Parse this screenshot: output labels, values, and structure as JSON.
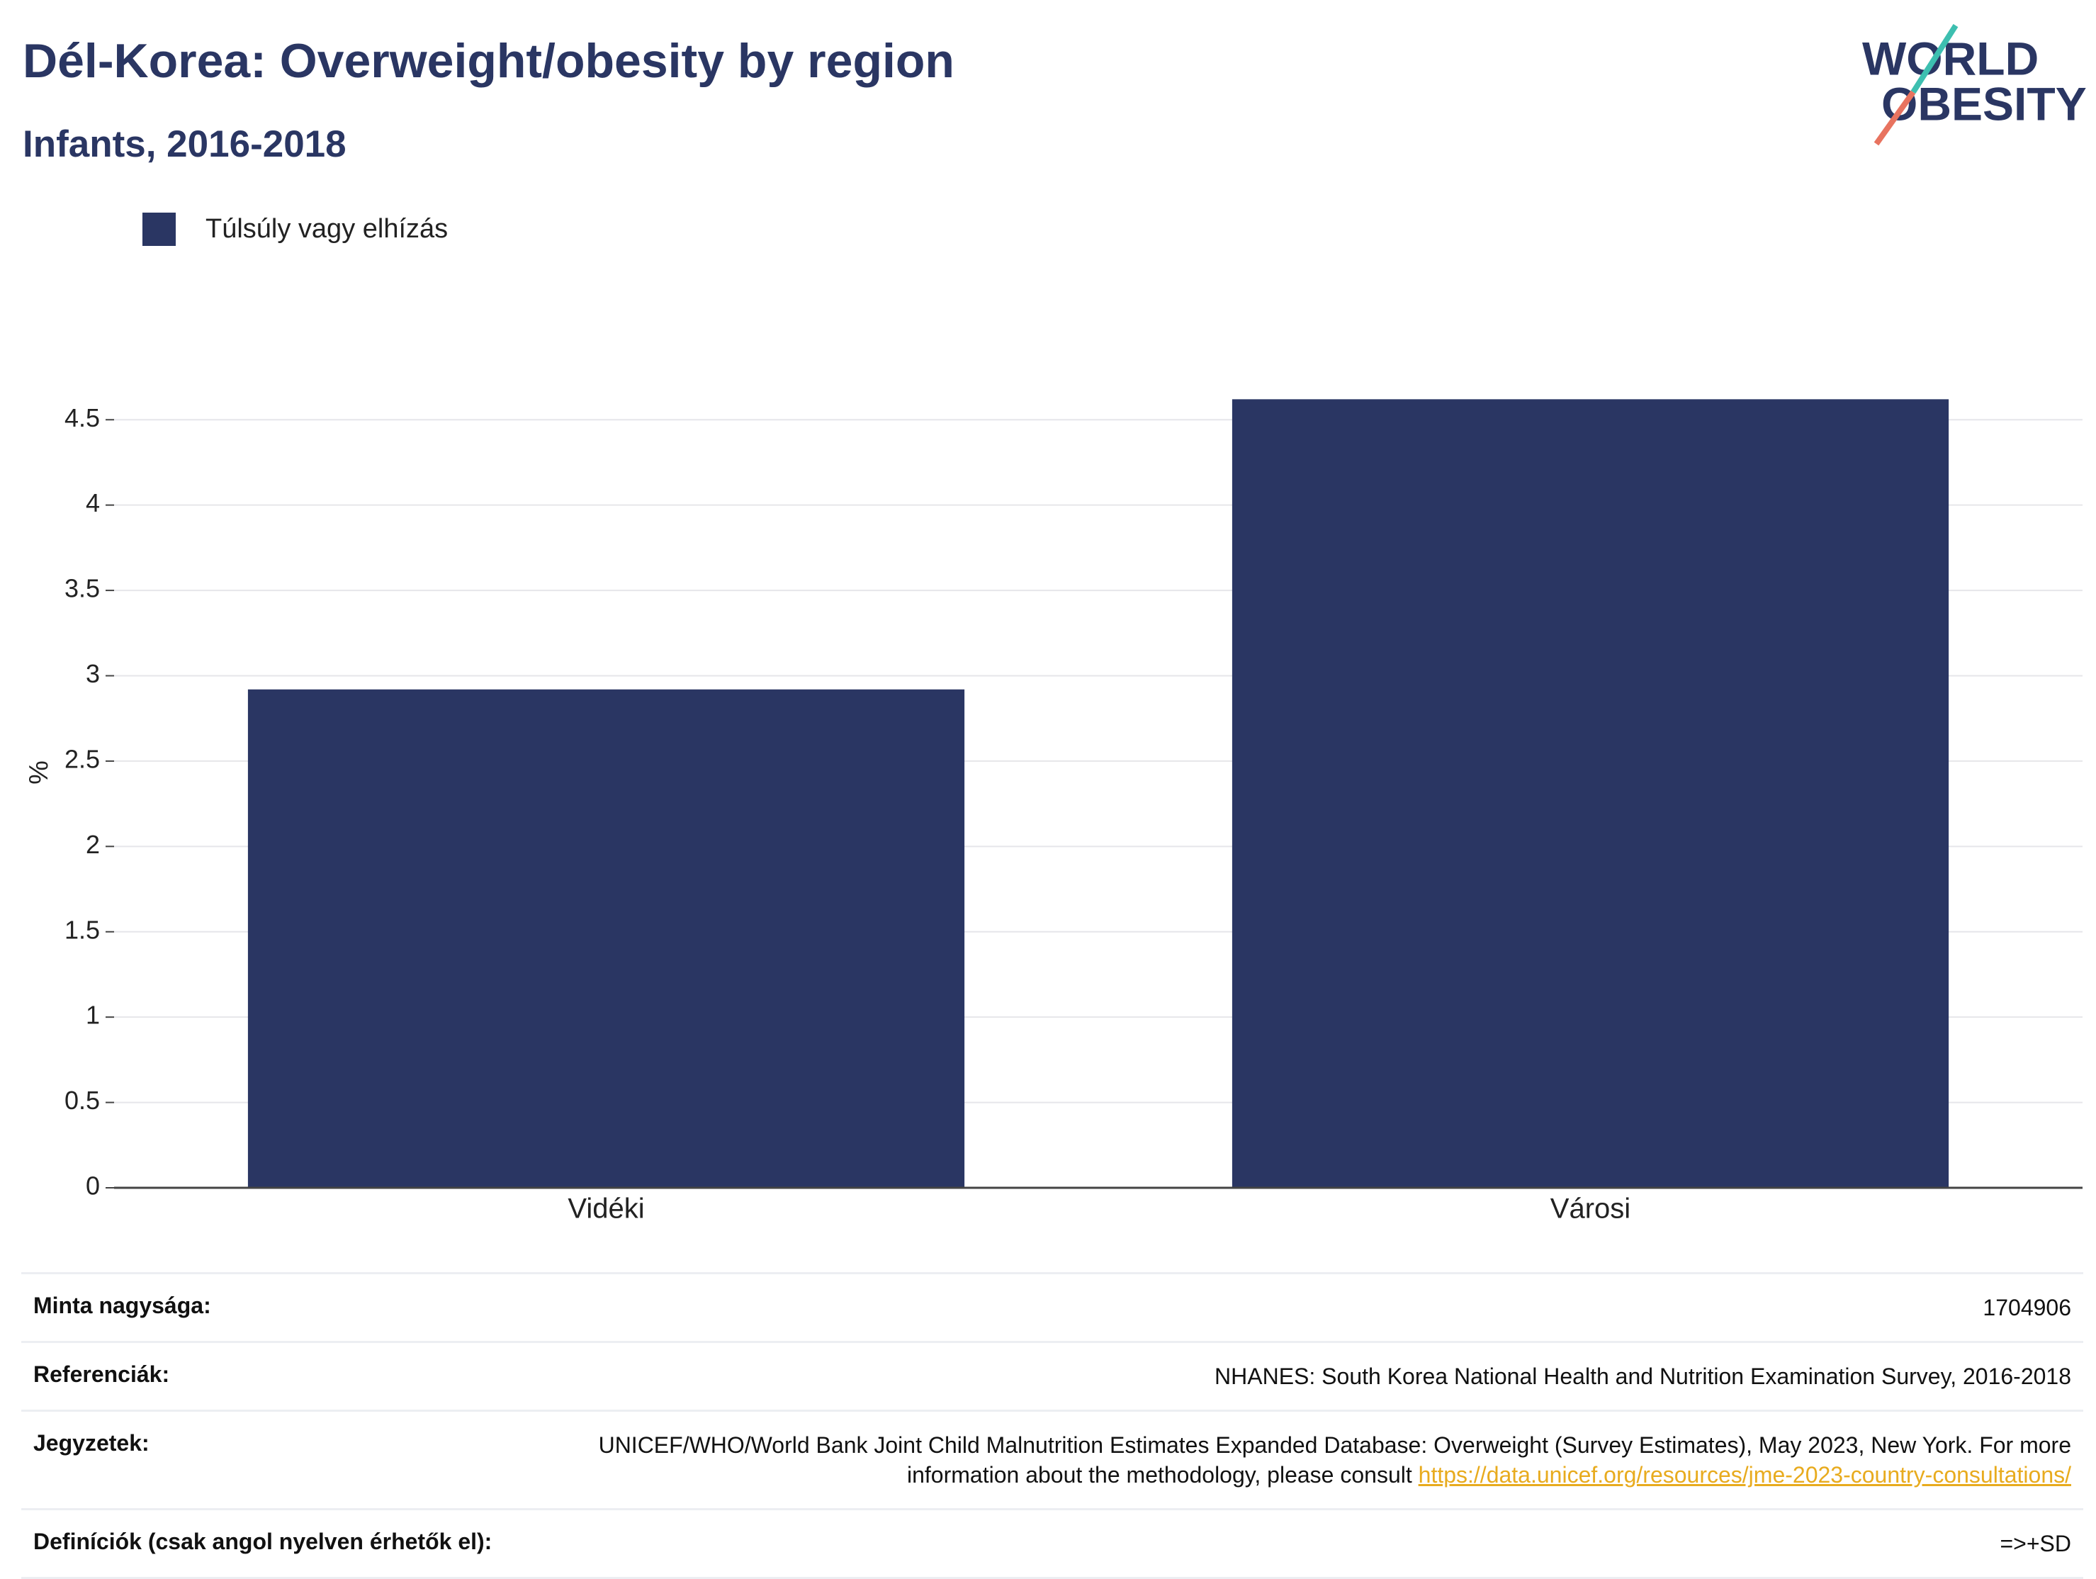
{
  "chart_data": {
    "type": "bar",
    "title": "Dél-Korea: Overweight/obesity by region",
    "subtitle": "Infants, 2016-2018",
    "y_label": "%",
    "categories": [
      "Vidéki",
      "Városi"
    ],
    "series": [
      {
        "name": "Túlsúly vagy elhízás",
        "color": "#2a3663",
        "values": [
          2.92,
          4.62
        ]
      }
    ],
    "ylim": [
      0,
      4.8
    ],
    "yticks": [
      0,
      0.5,
      1,
      1.5,
      2,
      2.5,
      3,
      3.5,
      4,
      4.5
    ],
    "grid": true,
    "legend": "top-left"
  },
  "logo": [
    "WORLD",
    "OBESITY"
  ],
  "info": {
    "sample_label": "Minta nagysága:",
    "sample": "1704906",
    "references_label": "Referenciák:",
    "references": "NHANES: South Korea National Health and Nutrition Examination Survey, 2016-2018",
    "notes_label": "Jegyzetek:",
    "notes": "UNICEF/WHO/World Bank Joint Child Malnutrition Estimates Expanded Database: Overweight (Survey Estimates), May 2023, New York. For more information about the methodology, please consult",
    "notes_link": "https://data.unicef.org/resources/jme-2023-country-consultations/",
    "definitions_label": "Definíciók (csak angol nyelven érhetők el):",
    "definitions": "=>+SD"
  }
}
